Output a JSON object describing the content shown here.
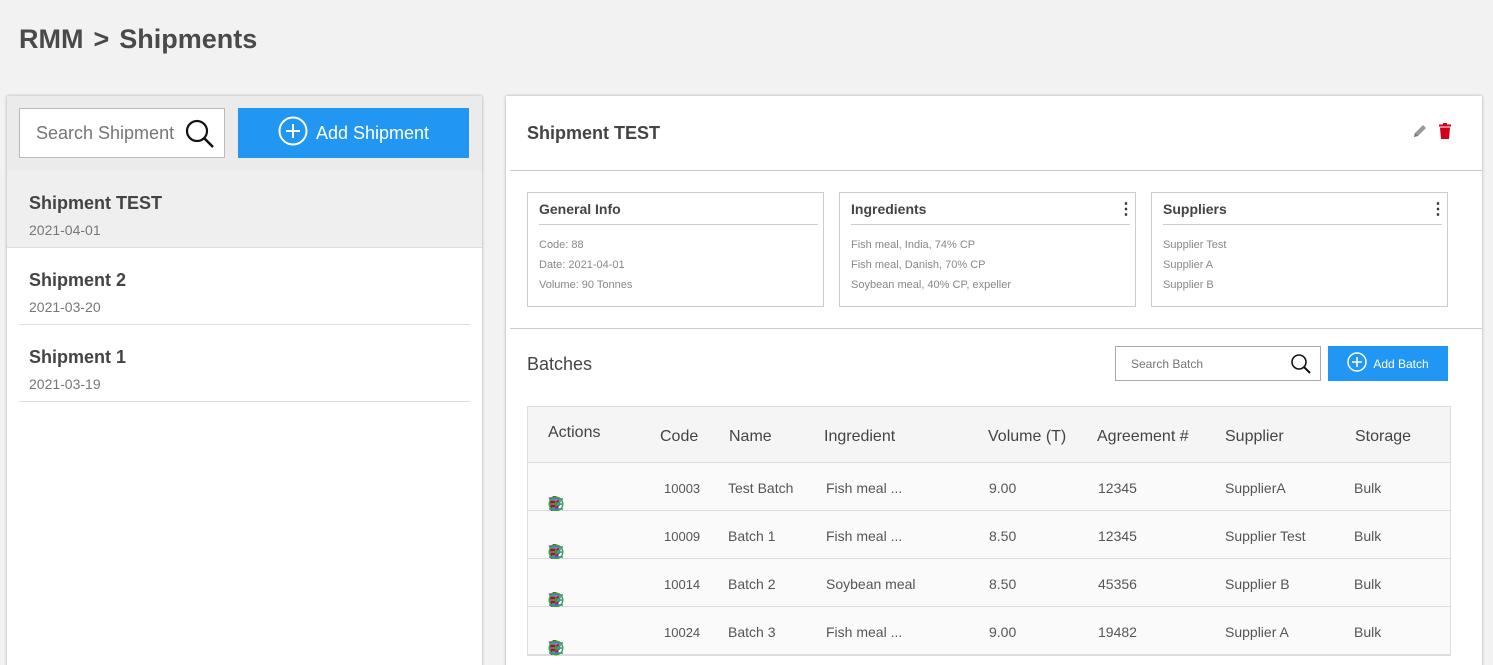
{
  "breadcrumb": {
    "root": "RMM",
    "sep": ">",
    "current": "Shipments"
  },
  "left": {
    "search_placeholder": "Search Shipment",
    "add_label": "Add Shipment",
    "items": [
      {
        "name": "Shipment TEST",
        "date": "2021-04-01"
      },
      {
        "name": "Shipment 2",
        "date": "2021-03-20"
      },
      {
        "name": "Shipment 1",
        "date": "2021-03-19"
      }
    ]
  },
  "detail": {
    "title": "Shipment TEST",
    "general": {
      "title": "General Info",
      "lines": [
        "Code: 88",
        "Date: 2021-04-01",
        "Volume: 90 Tonnes"
      ]
    },
    "ingredients": {
      "title": "Ingredients",
      "lines": [
        "Fish meal, India, 74% CP",
        "Fish meal, Danish, 70% CP",
        "Soybean meal, 40% CP, expeller"
      ]
    },
    "suppliers": {
      "title": "Suppliers",
      "lines": [
        "Supplier Test",
        "Supplier A",
        "Supplier B"
      ]
    }
  },
  "batches": {
    "title": "Batches",
    "search_placeholder": "Search Batch",
    "add_label": "Add Batch",
    "headers": [
      "Actions",
      "Code",
      "Name",
      "Ingredient",
      "Volume (T)",
      "Agreement #",
      "Supplier",
      "Storage"
    ],
    "rows": [
      [
        "10003",
        "Test Batch",
        "Fish meal ...",
        "9.00",
        "12345",
        "SupplierA",
        "Bulk"
      ],
      [
        "10009",
        "Batch 1",
        "Fish meal ...",
        "8.50",
        "12345",
        "Supplier Test",
        "Bulk"
      ],
      [
        "10014",
        "Batch 2",
        "Soybean meal",
        "8.50",
        "45356",
        "Supplier B",
        "Bulk"
      ],
      [
        "10024",
        "Batch 3",
        "Fish meal ...",
        "9.00",
        "19482",
        "Supplier A",
        "Bulk"
      ]
    ]
  },
  "colors": {
    "accent": "#2196f3",
    "delete": "#d0021b",
    "adjust": "#2b8fd6",
    "add": "#3aaa35"
  }
}
